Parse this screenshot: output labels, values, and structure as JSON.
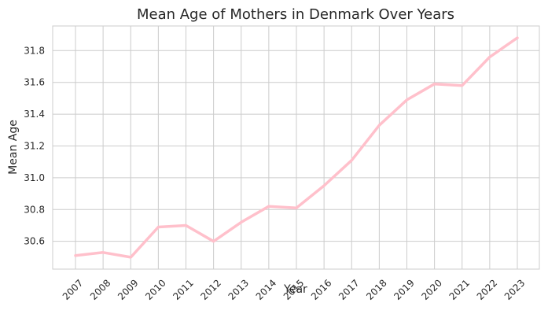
{
  "chart_data": {
    "type": "line",
    "title": "Mean Age of Mothers in Denmark Over Years",
    "xlabel": "Year",
    "ylabel": "Mean Age",
    "x": [
      "2007",
      "2008",
      "2009",
      "2010",
      "2011",
      "2012",
      "2013",
      "2014",
      "2015",
      "2016",
      "2017",
      "2018",
      "2019",
      "2020",
      "2021",
      "2022",
      "2023"
    ],
    "series": [
      {
        "values": [
          30.51,
          30.53,
          30.5,
          30.69,
          30.7,
          30.6,
          30.72,
          30.82,
          30.81,
          30.95,
          31.11,
          31.33,
          31.49,
          31.59,
          31.58,
          31.76,
          31.88
        ],
        "color": "#ffc0cb"
      }
    ],
    "yticks": [
      "30.6",
      "30.8",
      "31.0",
      "31.2",
      "31.4",
      "31.6",
      "31.8"
    ],
    "ylim": [
      30.425,
      31.955
    ],
    "grid": true,
    "legend": "none"
  }
}
